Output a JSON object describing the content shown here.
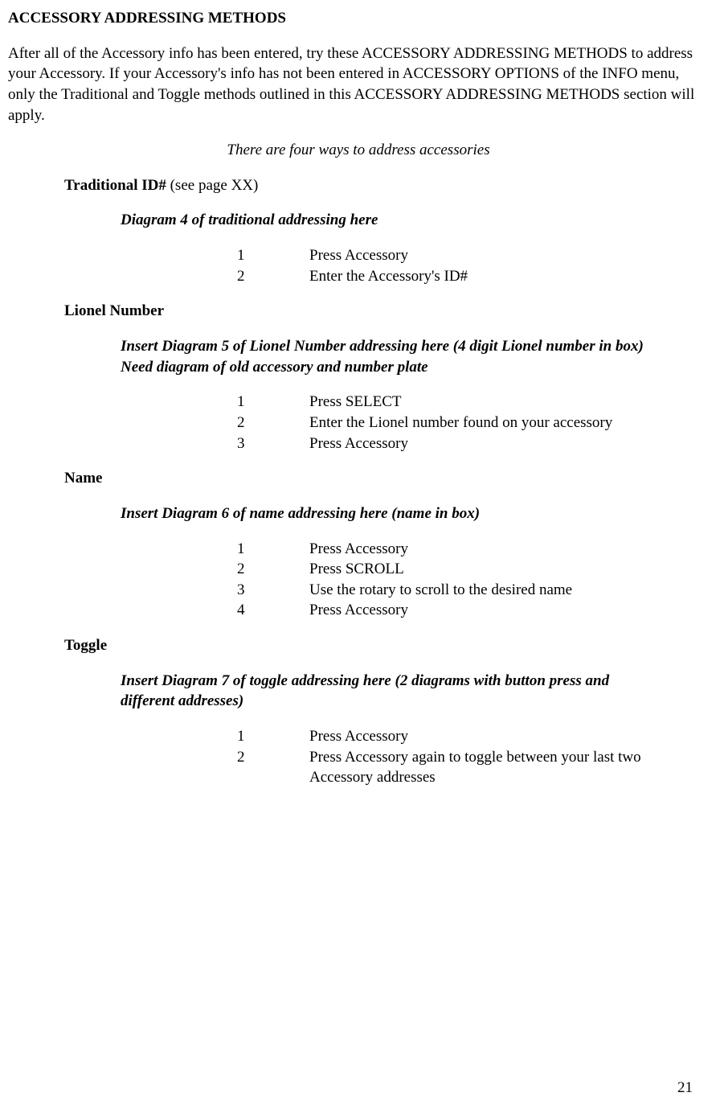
{
  "heading": "ACCESSORY ADDRESSING METHODS",
  "intro": "After all of the Accessory info has been entered, try these ACCESSORY ADDRESSING METHODS to address your Accessory. If your Accessory's info has not been entered in ACCESSORY OPTIONS of the INFO menu, only the Traditional  and Toggle methods outlined in this ACCESSORY ADDRESSING METHODS section will apply.",
  "ways_line": "There are four ways to address accessories",
  "methods": {
    "traditional": {
      "title_bold": "Traditional ID#",
      "title_plain": " (see page XX)",
      "diagram": "Diagram 4 of traditional addressing here",
      "steps": [
        "Press Accessory",
        "Enter the Accessory's ID#"
      ]
    },
    "lionel": {
      "title_bold": "Lionel Number",
      "diagram_line1": "Insert Diagram 5 of Lionel Number addressing here (4 digit Lionel number in box)",
      "diagram_line2": "Need diagram of old accessory and number plate",
      "steps": [
        "Press SELECT",
        "Enter the Lionel number found on your accessory",
        "Press Accessory"
      ]
    },
    "name": {
      "title_bold": "Name",
      "diagram": "Insert Diagram 6 of name addressing here (name in box)",
      "steps": [
        "Press Accessory",
        "Press SCROLL",
        "Use the rotary to scroll to the desired name",
        "Press Accessory"
      ]
    },
    "toggle": {
      "title_bold": "Toggle",
      "diagram": "Insert Diagram 7 of toggle addressing here (2 diagrams with button press and different addresses)",
      "steps": [
        "Press Accessory",
        "Press Accessory again to toggle between your last two Accessory addresses"
      ]
    }
  },
  "page_number": "21"
}
